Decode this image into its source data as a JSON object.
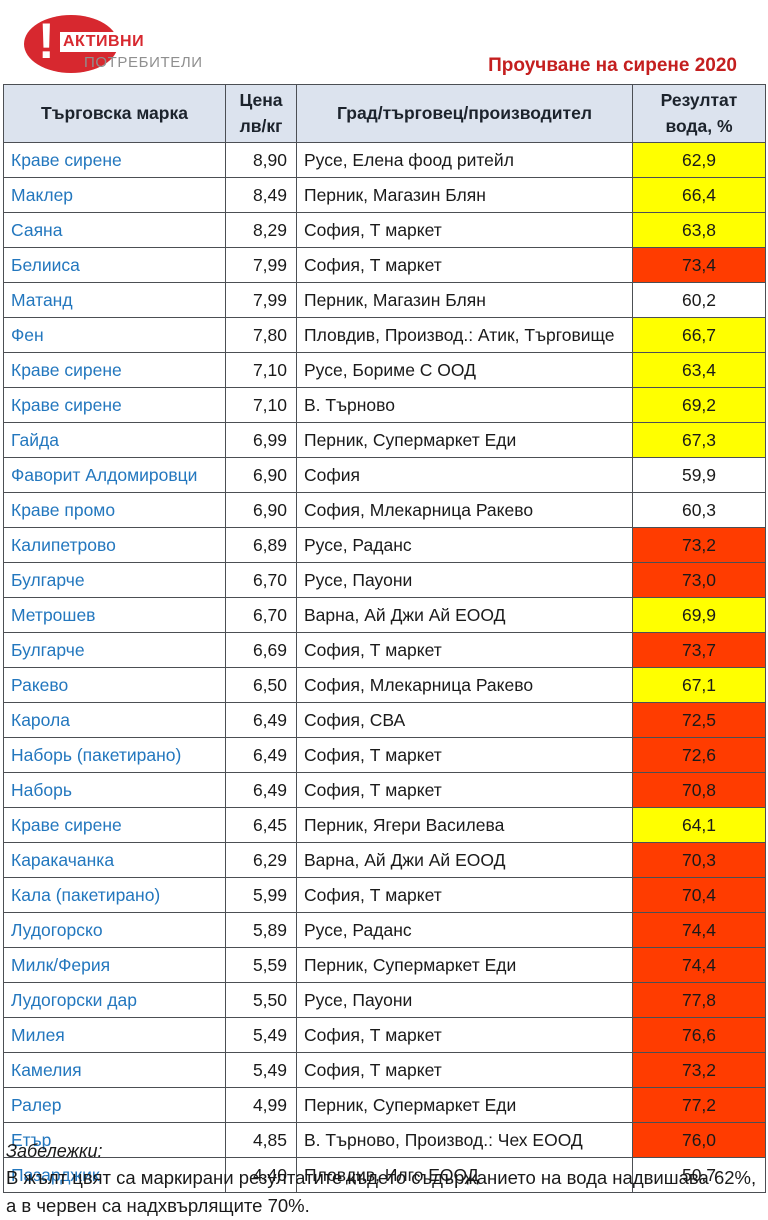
{
  "logo": {
    "exclamation": "!",
    "line1": "АКТИВНИ",
    "line2": "ПОТРЕБИТЕЛИ"
  },
  "title": "Проучване на сирене 2020",
  "table": {
    "headers": {
      "brand": "Търговска марка",
      "price": "Цена\nлв/кг",
      "source": "Град/търговец/производител",
      "result": "Резултат\nвода, %"
    },
    "rows": [
      {
        "brand": "Краве сирене",
        "price": "8,90",
        "source": "Русе, Елена фоод ритейл",
        "result": "62,9",
        "highlight": "yellow"
      },
      {
        "brand": "Маклер",
        "price": "8,49",
        "source": "Перник, Магазин Блян",
        "result": "66,4",
        "highlight": "yellow"
      },
      {
        "brand": "Саяна",
        "price": "8,29",
        "source": "София, Т маркет",
        "result": "63,8",
        "highlight": "yellow"
      },
      {
        "brand": "Белииса",
        "price": "7,99",
        "source": "София, Т маркет",
        "result": "73,4",
        "highlight": "red"
      },
      {
        "brand": "Матанд",
        "price": "7,99",
        "source": "Перник, Магазин Блян",
        "result": "60,2",
        "highlight": "none"
      },
      {
        "brand": "Фен",
        "price": "7,80",
        "source": "Пловдив, Производ.: Атик, Търговище",
        "result": "66,7",
        "highlight": "yellow"
      },
      {
        "brand": "Краве сирене",
        "price": "7,10",
        "source": "Русе, Бориме С ООД",
        "result": "63,4",
        "highlight": "yellow"
      },
      {
        "brand": "Краве сирене",
        "price": "7,10",
        "source": "В. Търново",
        "result": "69,2",
        "highlight": "yellow"
      },
      {
        "brand": "Гайда",
        "price": "6,99",
        "source": "Перник, Супермаркет Еди",
        "result": "67,3",
        "highlight": "yellow"
      },
      {
        "brand": "Фаворит Алдомировци",
        "price": "6,90",
        "source": "София",
        "result": "59,9",
        "highlight": "none"
      },
      {
        "brand": "Краве промо",
        "price": "6,90",
        "source": "София, Млекарница Ракево",
        "result": "60,3",
        "highlight": "none"
      },
      {
        "brand": "Калипетрово",
        "price": "6,89",
        "source": "Русе, Раданс",
        "result": "73,2",
        "highlight": "red"
      },
      {
        "brand": "Булгарче",
        "price": "6,70",
        "source": "Русе, Пауони",
        "result": "73,0",
        "highlight": "red"
      },
      {
        "brand": "Метрошев",
        "price": "6,70",
        "source": "Варна, Ай Джи Ай ЕООД",
        "result": "69,9",
        "highlight": "yellow"
      },
      {
        "brand": "Булгарче",
        "price": "6,69",
        "source": "София, Т маркет",
        "result": "73,7",
        "highlight": "red"
      },
      {
        "brand": "Ракево",
        "price": "6,50",
        "source": "София, Млекарница Ракево",
        "result": "67,1",
        "highlight": "yellow"
      },
      {
        "brand": "Карола",
        "price": "6,49",
        "source": "София, СВА",
        "result": "72,5",
        "highlight": "red"
      },
      {
        "brand": "Наборь (пакетирано)",
        "price": "6,49",
        "source": "София, Т маркет",
        "result": "72,6",
        "highlight": "red"
      },
      {
        "brand": "Наборь",
        "price": "6,49",
        "source": "София, Т маркет",
        "result": "70,8",
        "highlight": "red"
      },
      {
        "brand": "Краве сирене",
        "price": "6,45",
        "source": "Перник, Ягери Василева",
        "result": "64,1",
        "highlight": "yellow"
      },
      {
        "brand": "Каракачанка",
        "price": "6,29",
        "source": "Варна, Ай Джи Ай ЕООД",
        "result": "70,3",
        "highlight": "red"
      },
      {
        "brand": "Кала (пакетирано)",
        "price": "5,99",
        "source": "София, Т маркет",
        "result": "70,4",
        "highlight": "red"
      },
      {
        "brand": "Лудогорско",
        "price": "5,89",
        "source": "Русе, Раданс",
        "result": "74,4",
        "highlight": "red"
      },
      {
        "brand": "Милк/Ферия",
        "price": "5,59",
        "source": "Перник, Супермаркет Еди",
        "result": "74,4",
        "highlight": "red"
      },
      {
        "brand": "Лудогорски дар",
        "price": "5,50",
        "source": "Русе, Пауони",
        "result": "77,8",
        "highlight": "red"
      },
      {
        "brand": "Милея",
        "price": "5,49",
        "source": "София, Т маркет",
        "result": "76,6",
        "highlight": "red"
      },
      {
        "brand": "Камелия",
        "price": "5,49",
        "source": "София, Т маркет",
        "result": "73,2",
        "highlight": "red"
      },
      {
        "brand": "Ралер",
        "price": "4,99",
        "source": "Перник, Супермаркет Еди",
        "result": "77,2",
        "highlight": "red"
      },
      {
        "brand": "Етър",
        "price": "4,85",
        "source": "В. Търново, Производ.: Чех ЕООД",
        "result": "76,0",
        "highlight": "red"
      },
      {
        "brand": "Пазарджик",
        "price": "4,40",
        "source": "Пловдив, Илго ЕООД",
        "result": "50,7",
        "highlight": "none"
      }
    ]
  },
  "notes": {
    "label": "Забележки:",
    "text": "В жълт цвят са маркирани резултатите където съдържанието на вода надвишава 62%, а в червен са надхвърлящите 70%."
  },
  "colors": {
    "yellow": "#ffff00",
    "red": "#ff3c00",
    "header_bg": "#dce3ee",
    "brand_blue": "#2377be",
    "title_red": "#c41f1f",
    "logo_red": "#d7282f",
    "logo_gray": "#8f8f8f"
  }
}
